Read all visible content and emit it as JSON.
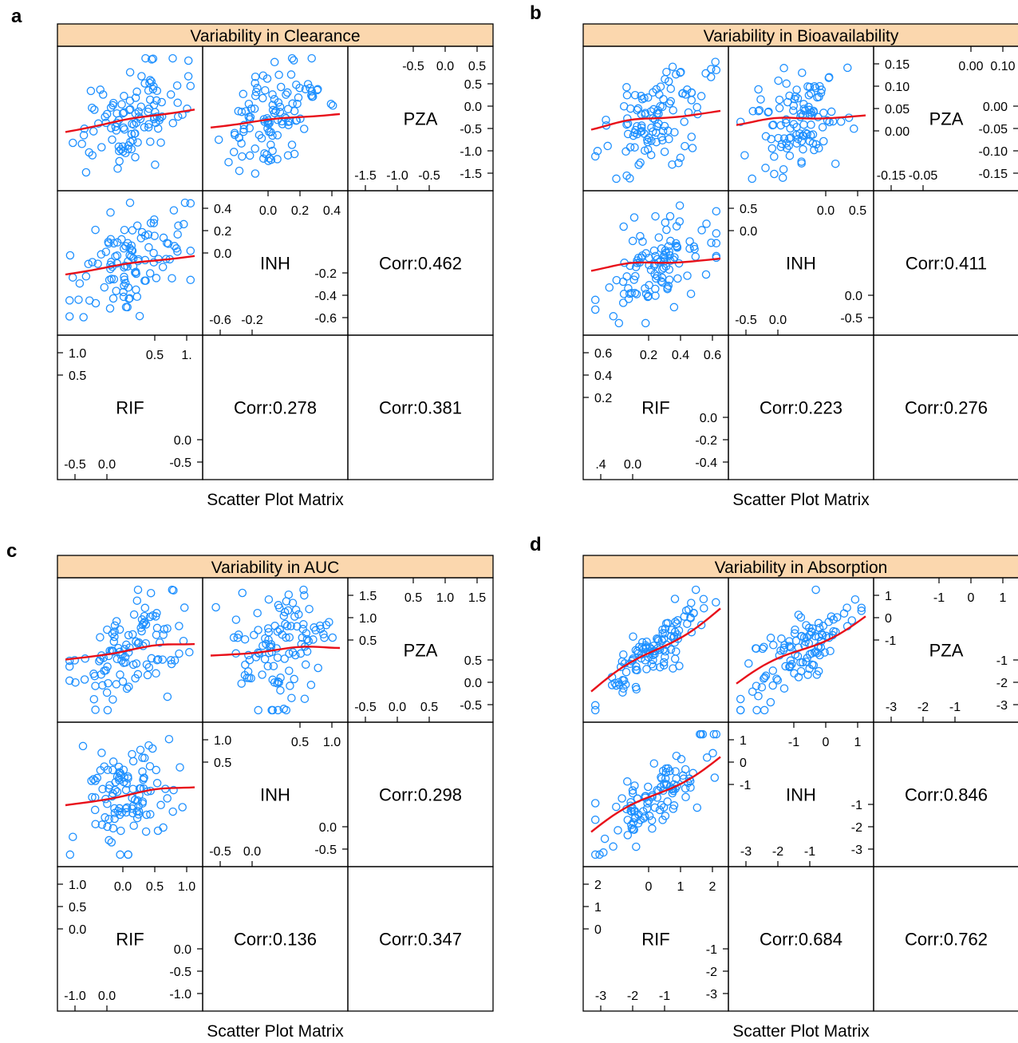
{
  "chart_data": [
    {
      "type": "scatter",
      "panel_letter": "a",
      "title": "Variability in Clearance",
      "xlabel": "Scatter Plot Matrix",
      "variables": [
        "PZA",
        "INH",
        "RIF"
      ],
      "correlations": [
        "Corr:0.462",
        "Corr:0.278",
        "Corr:0.381"
      ],
      "diag_ticks": {
        "PZA": {
          "right": [
            "0.5",
            "0.0",
            "-0.5",
            "-1.0",
            "-1.5"
          ],
          "top": [
            "-0.5",
            "0.0",
            "0.5"
          ],
          "bottom": [
            "-1.5",
            "-1.0",
            "-0.5"
          ]
        },
        "INH": {
          "left": [
            "0.4",
            "0.2",
            "0.0"
          ],
          "right": [
            "-0.2",
            "-0.4",
            "-0.6"
          ],
          "top": [
            "0.0",
            "0.2",
            "0.4"
          ],
          "bottom": [
            "-0.6",
            "-0.2"
          ]
        },
        "RIF": {
          "left": [
            "1.0",
            "0.5"
          ],
          "right": [
            "0.0",
            "-0.5"
          ],
          "top": [
            "0.5",
            "1."
          ],
          "bottom": [
            "-0.5",
            "0.0"
          ]
        }
      },
      "scatter_pairs": [
        {
          "x": "PZA",
          "y": "INH",
          "correlation": 0.462
        },
        {
          "x": "PZA",
          "y": "RIF",
          "correlation": 0.278
        },
        {
          "x": "INH",
          "y": "RIF",
          "correlation": 0.381
        }
      ]
    },
    {
      "type": "scatter",
      "panel_letter": "b",
      "title": "Variability in Bioavailability",
      "xlabel": "Scatter Plot Matrix",
      "variables": [
        "PZA",
        "INH",
        "RIF"
      ],
      "correlations": [
        "Corr:0.411",
        "Corr:0.223",
        "Corr:0.276"
      ],
      "diag_ticks": {
        "PZA": {
          "left": [
            "0.15",
            "0.10",
            "0.05",
            "0.00"
          ],
          "right": [
            "0.00",
            "-0.05",
            "-0.10",
            "-0.15"
          ],
          "top": [
            "0.00",
            "0.10"
          ],
          "bottom": [
            "-0.15",
            "-0.05"
          ]
        },
        "INH": {
          "left": [
            "0.5",
            "0.0"
          ],
          "right": [
            "0.0",
            "-0.5"
          ],
          "top": [
            "0.0",
            "0.5"
          ],
          "bottom": [
            "-0.5",
            "0.0"
          ]
        },
        "RIF": {
          "left": [
            "0.6",
            "0.4",
            "0.2"
          ],
          "right": [
            "0.0",
            "-0.2",
            "-0.4"
          ],
          "top": [
            "0.2",
            "0.4",
            "0.6"
          ],
          "bottom": [
            ".4",
            "0.0"
          ]
        }
      },
      "scatter_pairs": [
        {
          "x": "PZA",
          "y": "INH",
          "correlation": 0.411
        },
        {
          "x": "PZA",
          "y": "RIF",
          "correlation": 0.223
        },
        {
          "x": "INH",
          "y": "RIF",
          "correlation": 0.276
        }
      ]
    },
    {
      "type": "scatter",
      "panel_letter": "c",
      "title": "Variability in AUC",
      "xlabel": "Scatter Plot Matrix",
      "variables": [
        "PZA",
        "INH",
        "RIF"
      ],
      "correlations": [
        "Corr:0.298",
        "Corr:0.136",
        "Corr:0.347"
      ],
      "diag_ticks": {
        "PZA": {
          "left": [
            "1.5",
            "1.0",
            "0.5"
          ],
          "right": [
            "0.5",
            "0.0",
            "-0.5"
          ],
          "top": [
            "0.5",
            "1.0",
            "1.5"
          ],
          "bottom": [
            "-0.5",
            "0.0",
            "0.5"
          ]
        },
        "INH": {
          "left": [
            "1.0",
            "0.5"
          ],
          "right": [
            "0.0",
            "-0.5"
          ],
          "top": [
            "0.5",
            "1.0"
          ],
          "bottom": [
            "-0.5",
            "0.0"
          ]
        },
        "RIF": {
          "left": [
            "1.0",
            "0.5",
            "0.0"
          ],
          "right": [
            "0.0",
            "-0.5",
            "-1.0"
          ],
          "top": [
            "0.0",
            "0.5",
            "1.0"
          ],
          "bottom": [
            "-1.0",
            "0.0"
          ]
        }
      },
      "scatter_pairs": [
        {
          "x": "PZA",
          "y": "INH",
          "correlation": 0.298
        },
        {
          "x": "PZA",
          "y": "RIF",
          "correlation": 0.136
        },
        {
          "x": "INH",
          "y": "RIF",
          "correlation": 0.347
        }
      ]
    },
    {
      "type": "scatter",
      "panel_letter": "d",
      "title": "Variability in Absorption",
      "xlabel": "Scatter Plot Matrix",
      "variables": [
        "PZA",
        "INH",
        "RIF"
      ],
      "correlations": [
        "Corr:0.846",
        "Corr:0.684",
        "Corr:0.762"
      ],
      "diag_ticks": {
        "PZA": {
          "left": [
            "1",
            "0",
            "-1"
          ],
          "right": [
            "-1",
            "-2",
            "-3"
          ],
          "top": [
            "-1",
            "0",
            "1"
          ],
          "bottom": [
            "-3",
            "-2",
            "-1"
          ]
        },
        "INH": {
          "left": [
            "1",
            "0",
            "-1"
          ],
          "right": [
            "-1",
            "-2",
            "-3"
          ],
          "top": [
            "-1",
            "0",
            "1"
          ],
          "bottom": [
            "-3",
            "-2",
            "-1"
          ]
        },
        "RIF": {
          "left": [
            "2",
            "1",
            "0"
          ],
          "right": [
            "-1",
            "-2",
            "-3"
          ],
          "top": [
            "0",
            "1",
            "2"
          ],
          "bottom": [
            "-3",
            "-2",
            "-1"
          ]
        }
      },
      "scatter_pairs": [
        {
          "x": "PZA",
          "y": "INH",
          "correlation": 0.846
        },
        {
          "x": "PZA",
          "y": "RIF",
          "correlation": 0.684
        },
        {
          "x": "INH",
          "y": "RIF",
          "correlation": 0.762
        }
      ]
    }
  ],
  "colors": {
    "strip_fill": "#FBD7AE",
    "point": "#1E90FF",
    "smooth": "#E8101A",
    "frame": "#000000"
  }
}
